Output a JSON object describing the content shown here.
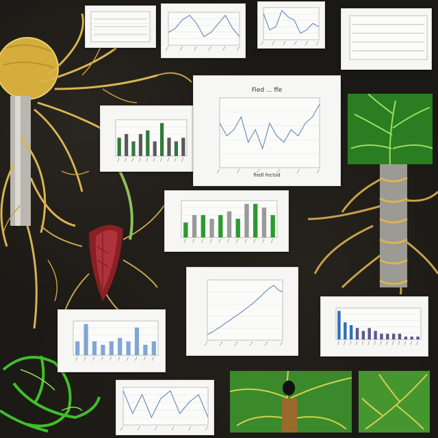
{
  "colors": {
    "background": "#1b1915",
    "root_yellow": "#d8b24a",
    "leaf_green": "#3fae2a",
    "bar_blue": "#2f6fc0",
    "bar_green": "#2e9a2e",
    "line_blue": "#6b8fc4",
    "panel_bg": "#f6f6f4"
  },
  "illustrations": [
    {
      "name": "yellow-bulb-root",
      "icon": "bulb-root-icon"
    },
    {
      "name": "red-seed-root",
      "icon": "seed-root-icon"
    },
    {
      "name": "leaf-stem-root-right",
      "icon": "leaf-stem-icon"
    },
    {
      "name": "green-vine-bottom-left",
      "icon": "vine-icon"
    },
    {
      "name": "green-leaf-tile-bottom-mid",
      "icon": "leaf-tile-icon"
    },
    {
      "name": "green-leaf-tile-bottom-right",
      "icon": "leaf-tile-icon"
    }
  ],
  "chart_data": [
    {
      "type": "table",
      "title": "",
      "rows": 3
    },
    {
      "type": "line",
      "title": "",
      "x": [
        0,
        1,
        2,
        3,
        4,
        5,
        6,
        7,
        8,
        9,
        10
      ],
      "values": [
        3,
        4,
        6,
        7,
        5,
        2,
        3,
        5,
        7,
        4,
        2
      ]
    },
    {
      "type": "line",
      "title": "",
      "x": [
        0,
        1,
        2,
        3,
        4,
        5,
        6,
        7,
        8,
        9
      ],
      "values": [
        8,
        3,
        4,
        9,
        7,
        6,
        2,
        3,
        5,
        4
      ]
    },
    {
      "type": "table",
      "title": "",
      "rows": 4
    },
    {
      "type": "bar",
      "title": "",
      "categories": [
        "a",
        "b",
        "c",
        "d",
        "e",
        "f",
        "g",
        "h",
        "i",
        "j"
      ],
      "values": [
        5,
        6,
        4,
        6,
        7,
        4,
        9,
        5,
        4,
        5
      ]
    },
    {
      "type": "line",
      "title": "Fied ... ffe",
      "xlabel": "fiedl fectod",
      "x": [
        0,
        1,
        2,
        3,
        4,
        5,
        6,
        7,
        8,
        9,
        10,
        11,
        12,
        13,
        14
      ],
      "values": [
        7,
        5,
        6,
        8,
        4,
        6,
        3,
        7,
        5,
        4,
        6,
        5,
        7,
        8,
        10
      ]
    },
    {
      "type": "bar",
      "title": "",
      "categories": [
        "a",
        "b",
        "c",
        "d",
        "e",
        "f",
        "g",
        "h",
        "i",
        "j",
        "k"
      ],
      "values": [
        4,
        6,
        6,
        5,
        6,
        7,
        5,
        9,
        9,
        8,
        6
      ]
    },
    {
      "type": "line",
      "title": "",
      "x": [
        0,
        1,
        2,
        3,
        4,
        5,
        6,
        7,
        8,
        9,
        10,
        11,
        12,
        13,
        14,
        15,
        16,
        17
      ],
      "values": [
        1,
        1.4,
        1.9,
        2.4,
        3,
        3.5,
        4.1,
        4.6,
        5.2,
        5.8,
        6.4,
        7.1,
        7.8,
        8.6,
        9.3,
        9.8,
        9,
        8.6
      ]
    },
    {
      "type": "bar",
      "title": "",
      "categories": [
        "a",
        "b",
        "c",
        "d",
        "e",
        "f",
        "g",
        "h",
        "i",
        "j",
        "k",
        "l",
        "m",
        "n"
      ],
      "values": [
        10,
        6,
        5,
        4,
        3,
        4,
        3,
        2,
        2,
        2,
        2,
        1,
        1,
        1
      ]
    },
    {
      "type": "bar",
      "title": "",
      "categories": [
        "a",
        "b",
        "c",
        "d",
        "e",
        "f",
        "g",
        "h",
        "i",
        "j"
      ],
      "values": [
        4,
        9,
        4,
        3,
        4,
        5,
        4,
        8,
        3,
        4
      ]
    },
    {
      "type": "line",
      "title": "",
      "x": [
        0,
        1,
        2,
        3,
        4,
        5,
        6,
        7,
        8,
        9
      ],
      "values": [
        9,
        3,
        8,
        2,
        7,
        9,
        3,
        6,
        8,
        2
      ]
    }
  ]
}
